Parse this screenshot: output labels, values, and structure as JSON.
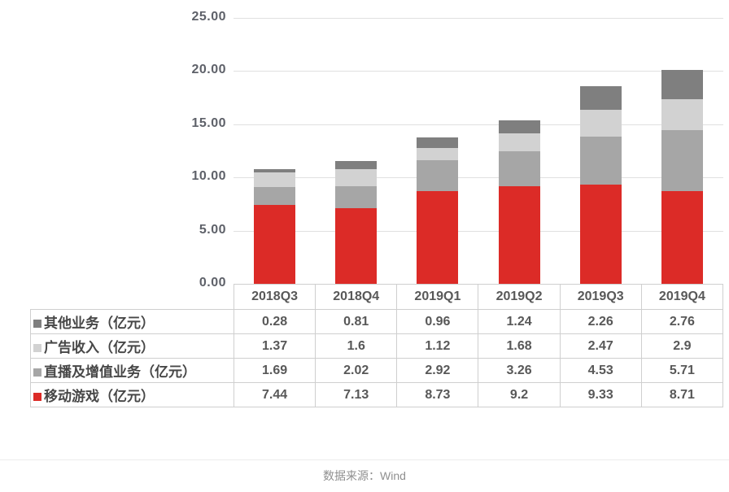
{
  "chart_data": {
    "type": "bar",
    "stacked": true,
    "categories": [
      "2018Q3",
      "2018Q4",
      "2019Q1",
      "2019Q2",
      "2019Q3",
      "2019Q4"
    ],
    "series": [
      {
        "name": "其他业务（亿元）",
        "color": "#7f7f7f",
        "values": [
          0.28,
          0.81,
          0.96,
          1.24,
          2.26,
          2.76
        ]
      },
      {
        "name": "广告收入（亿元）",
        "color": "#d2d2d2",
        "values": [
          1.37,
          1.6,
          1.12,
          1.68,
          2.47,
          2.9
        ]
      },
      {
        "name": "直播及增值业务（亿元）",
        "color": "#a6a6a6",
        "values": [
          1.69,
          2.02,
          2.92,
          3.26,
          4.53,
          5.71
        ]
      },
      {
        "name": "移动游戏（亿元）",
        "color": "#dc2b27",
        "values": [
          7.44,
          7.13,
          8.73,
          9.2,
          9.33,
          8.71
        ]
      }
    ],
    "stack_order_bottom_to_top": [
      "移动游戏（亿元）",
      "直播及增值业务（亿元）",
      "广告收入（亿元）",
      "其他业务（亿元）"
    ],
    "title": "",
    "xlabel": "",
    "ylabel": "",
    "ylim": [
      0,
      25
    ],
    "ytick_labels": [
      "0.00",
      "5.00",
      "10.00",
      "15.00",
      "20.00",
      "25.00"
    ],
    "grid": true,
    "legend_position": "data-table-left-column"
  },
  "footer": {
    "source_label": "数据来源：Wind"
  },
  "colors": {
    "accent_red": "#dc2b27",
    "gray_dark": "#7f7f7f",
    "gray_medium": "#a6a6a6",
    "gray_light": "#d2d2d2",
    "axis_text": "#5e6169",
    "table_border": "#cfcfcf",
    "gridline": "#e0e0e0"
  }
}
